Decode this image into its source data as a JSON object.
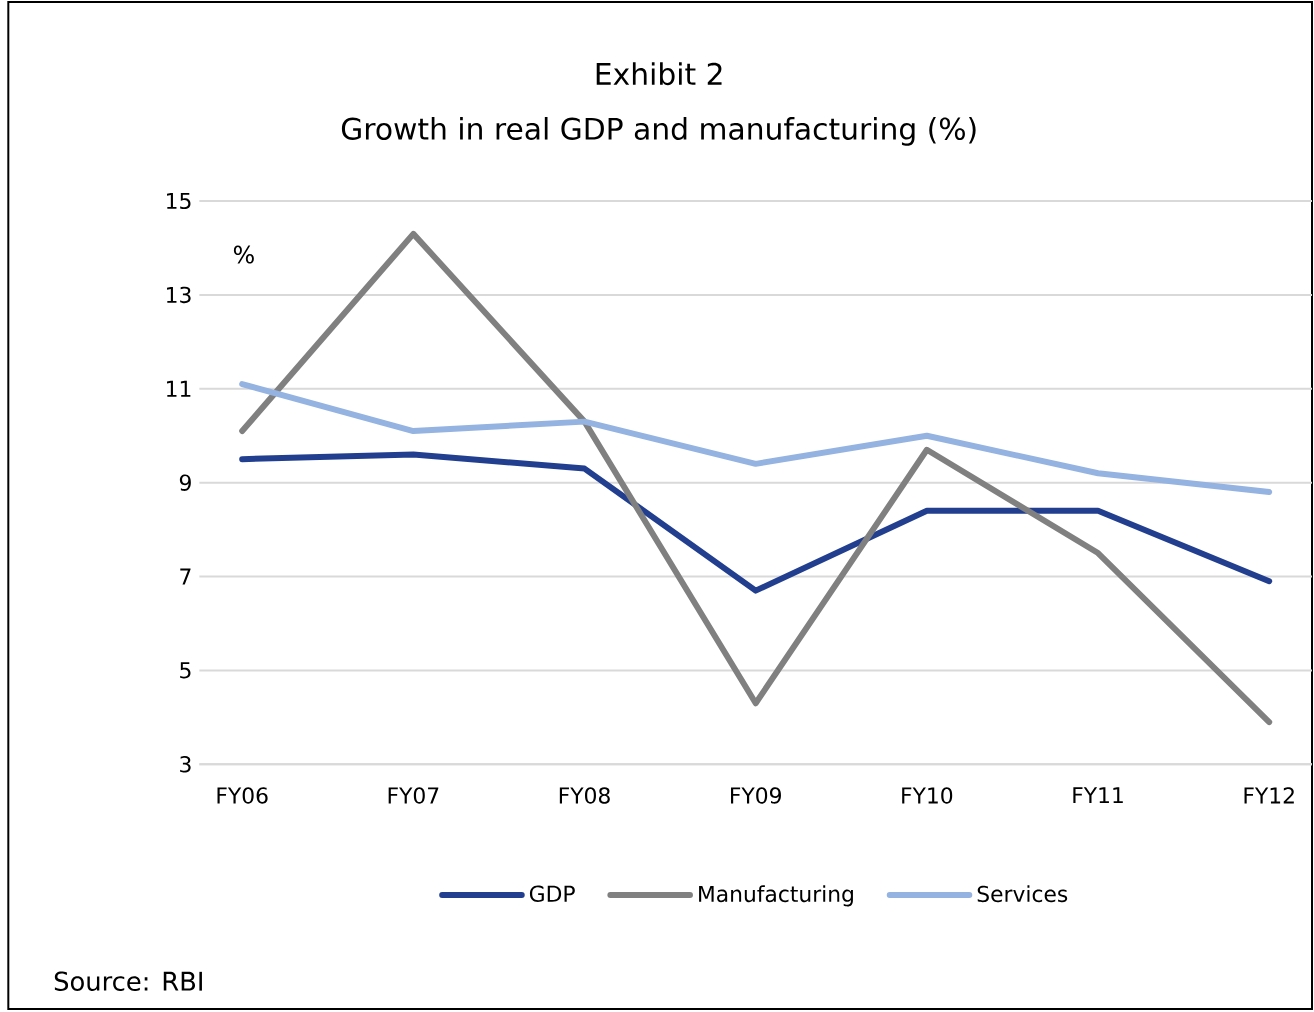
{
  "chart_data": {
    "type": "line",
    "title": "Exhibit 2",
    "subtitle": "Growth in real GDP and manufacturing (%)",
    "ylabel": "%",
    "categories": [
      "FY06",
      "FY07",
      "FY08",
      "FY09",
      "FY10",
      "FY11",
      "FY12"
    ],
    "series": [
      {
        "name": "GDP",
        "color": "#223f8f",
        "values": [
          9.5,
          9.6,
          9.3,
          6.7,
          8.4,
          8.4,
          6.9
        ]
      },
      {
        "name": "Manufacturing",
        "color": "#808080",
        "values": [
          10.1,
          14.3,
          10.3,
          4.3,
          9.7,
          7.5,
          3.9
        ]
      },
      {
        "name": "Services",
        "color": "#95b3e0",
        "values": [
          11.1,
          10.1,
          10.3,
          9.4,
          10.0,
          9.2,
          8.8
        ]
      }
    ],
    "ylim": [
      3,
      15
    ],
    "yticks": [
      3,
      5,
      7,
      9,
      11,
      13,
      15
    ],
    "grid": "y",
    "legend": "bottom",
    "marker": "none",
    "line_style": "solid",
    "annotations": [
      "Source: RBI"
    ]
  }
}
